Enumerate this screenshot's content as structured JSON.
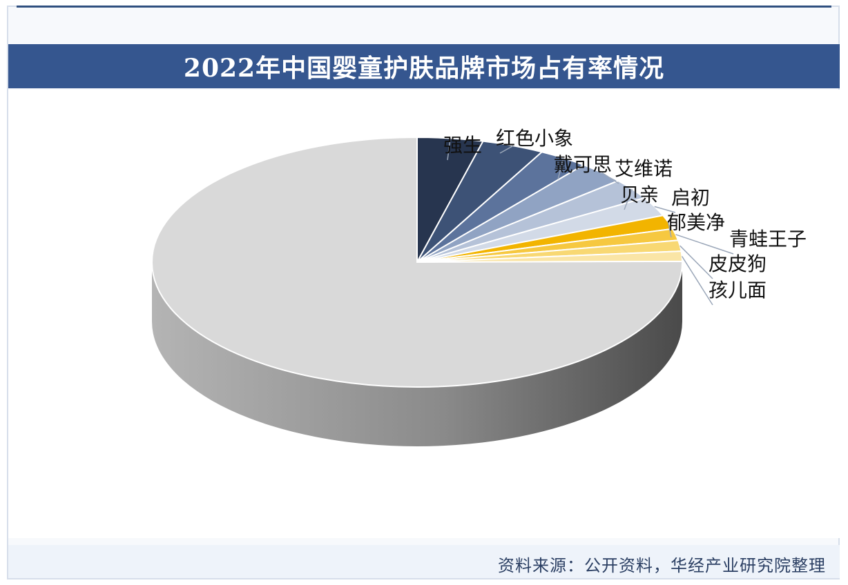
{
  "title": "2022年中国婴童护肤品牌市场占有率情况",
  "source": "资料来源：公开资料，华经产业研究院整理",
  "colors": {
    "header": "#35568f",
    "other_slice": "#d9d9d9",
    "side_light": "#b4b4b4",
    "side_dark": "#4a4a4a"
  },
  "chart_data": {
    "type": "pie",
    "style": "3d",
    "slices": [
      {
        "name": "强生",
        "value": 4.0,
        "color": "#27354f"
      },
      {
        "name": "红色小象",
        "value": 3.8,
        "color": "#3d5276"
      },
      {
        "name": "戴可思",
        "value": 3.0,
        "color": "#5c739c"
      },
      {
        "name": "艾维诺",
        "value": 2.9,
        "color": "#90a3c3"
      },
      {
        "name": "贝亲",
        "value": 2.7,
        "color": "#b5c2d8"
      },
      {
        "name": "启初",
        "value": 2.5,
        "color": "#d2dae7"
      },
      {
        "name": "郁美净",
        "value": 1.8,
        "color": "#f2b400"
      },
      {
        "name": "青蛙王子",
        "value": 1.5,
        "color": "#f6c840"
      },
      {
        "name": "皮皮狗",
        "value": 1.4,
        "color": "#f8d873"
      },
      {
        "name": "孩儿面",
        "value": 1.3,
        "color": "#fae5a6"
      },
      {
        "name": "",
        "value": 75.1,
        "color": "#d9d9d9"
      }
    ]
  }
}
